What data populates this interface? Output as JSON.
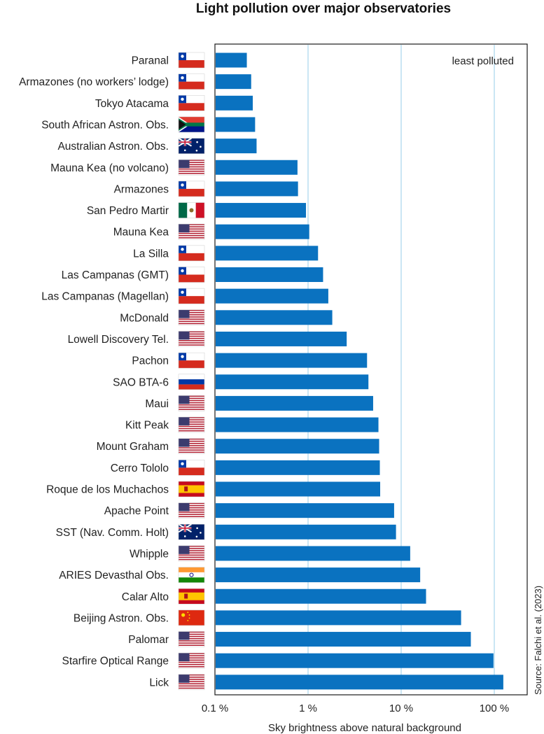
{
  "chart_data": {
    "type": "bar",
    "orientation": "horizontal",
    "title": "Light pollution over major observatories",
    "xlabel": "Sky brightness above natural background",
    "x_scale": "log",
    "xlim": [
      0.1,
      200
    ],
    "ticks": [
      {
        "value": 0.1,
        "label": "0.1 %"
      },
      {
        "value": 1,
        "label": "1 %"
      },
      {
        "value": 10,
        "label": "10 %"
      },
      {
        "value": 100,
        "label": "100 %"
      }
    ],
    "annotation": "least polluted",
    "source": "Source: Falchi et al. (2023)",
    "bar_color": "#0a72c0",
    "grid_color": "#a8d5ec",
    "categories": [
      "Paranal",
      "Armazones (no workers’ lodge)",
      "Tokyo Atacama",
      "South African Astron. Obs.",
      "Australian Astron. Obs.",
      "Mauna Kea (no volcano)",
      "Armazones",
      "San Pedro Martir",
      "Mauna Kea",
      "La Silla",
      "Las Campanas (GMT)",
      "Las Campanas (Magellan)",
      "McDonald",
      "Lowell Discovery Tel.",
      "Pachon",
      "SAO BTA-6",
      "Maui",
      "Kitt Peak",
      "Mount Graham",
      "Cerro Tololo",
      "Roque de los Muchachos",
      "Apache Point",
      "SST (Nav. Comm. Holt)",
      "Whipple",
      "ARIES Devasthal Obs.",
      "Calar Alto",
      "Beijing Astron. Obs.",
      "Palomar",
      "Starfire Optical Range",
      "Lick"
    ],
    "values": [
      0.22,
      0.245,
      0.255,
      0.27,
      0.28,
      0.77,
      0.78,
      0.95,
      1.03,
      1.28,
      1.45,
      1.65,
      1.82,
      2.6,
      4.3,
      4.45,
      5.0,
      5.7,
      5.8,
      5.9,
      5.95,
      8.4,
      8.8,
      12.5,
      16,
      18.5,
      44,
      56,
      98,
      125
    ],
    "flags": [
      "flag-chile",
      "flag-chile",
      "flag-chile",
      "flag-south-africa",
      "flag-australia",
      "flag-usa",
      "flag-chile",
      "flag-mexico",
      "flag-usa",
      "flag-chile",
      "flag-chile",
      "flag-chile",
      "flag-usa",
      "flag-usa",
      "flag-chile",
      "flag-russia",
      "flag-usa",
      "flag-usa",
      "flag-usa",
      "flag-chile",
      "flag-spain",
      "flag-usa",
      "flag-australia",
      "flag-usa",
      "flag-india",
      "flag-spain",
      "flag-china",
      "flag-usa",
      "flag-usa",
      "flag-usa"
    ]
  }
}
